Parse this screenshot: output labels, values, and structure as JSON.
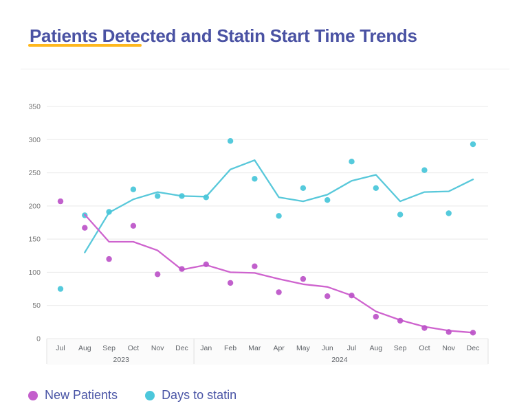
{
  "page": {
    "title": "Patients Detected and Statin Start Time Trends"
  },
  "colors": {
    "title_text": "#4a52a3",
    "accent_underline": "#ffb81e",
    "gridline": "#e9e9e9",
    "axis_band_border": "#e0e0e0",
    "axis_band_fill": "#fbfbfb",
    "y_tick_text": "#757575",
    "x_tick_text": "#5f6368",
    "legend_text": "#4a55a6",
    "new_patients_dot": "#bc52c8",
    "new_patients_line": "#ce63ce",
    "days_to_statin_dot": "#46c5d9",
    "days_to_statin_line": "#58c8da"
  },
  "legend": {
    "items": [
      {
        "key": "new-patients",
        "label": "New Patients",
        "color": "#c45fcc"
      },
      {
        "key": "days-to-statin",
        "label": "Days to statin",
        "color": "#4cc7db"
      }
    ]
  },
  "chart_data": {
    "type": "scatter",
    "subtype": "scatter-with-trend-lines",
    "title": "Patients Detected and Statin Start Time Trends",
    "xlabel": "",
    "ylabel": "",
    "ylim": [
      0,
      350
    ],
    "yticks": [
      0,
      50,
      100,
      150,
      200,
      250,
      300,
      350
    ],
    "grid": true,
    "legend_position": "bottom-left",
    "categories": [
      "Jul",
      "Aug",
      "Sep",
      "Oct",
      "Nov",
      "Dec",
      "Jan",
      "Feb",
      "Mar",
      "Apr",
      "May",
      "Jun",
      "Jul",
      "Aug",
      "Sep",
      "Oct",
      "Nov",
      "Dec"
    ],
    "year_groups": [
      {
        "label": "2023",
        "start": 0,
        "end": 5
      },
      {
        "label": "2024",
        "start": 6,
        "end": 17
      }
    ],
    "series": [
      {
        "name": "New Patients",
        "key": "new-patients",
        "dot_color": "#bc52c8",
        "line_color": "#ce63ce",
        "points": [
          207,
          167,
          120,
          170,
          97,
          105,
          112,
          84,
          109,
          70,
          90,
          64,
          65,
          33,
          27,
          16,
          10,
          9
        ],
        "trend": [
          null,
          187,
          146,
          146,
          133,
          104,
          111,
          100,
          99,
          90,
          82,
          78,
          65,
          41,
          28,
          18,
          12,
          9
        ]
      },
      {
        "name": "Days to statin",
        "key": "days-to-statin",
        "dot_color": "#46c5d9",
        "line_color": "#58c8da",
        "points": [
          75,
          186,
          191,
          225,
          215,
          215,
          213,
          298,
          241,
          185,
          227,
          209,
          267,
          227,
          187,
          254,
          189,
          293
        ],
        "trend": [
          null,
          130,
          190,
          210,
          221,
          215,
          214,
          255,
          269,
          213,
          207,
          217,
          238,
          247,
          207,
          221,
          222,
          240
        ]
      }
    ]
  }
}
